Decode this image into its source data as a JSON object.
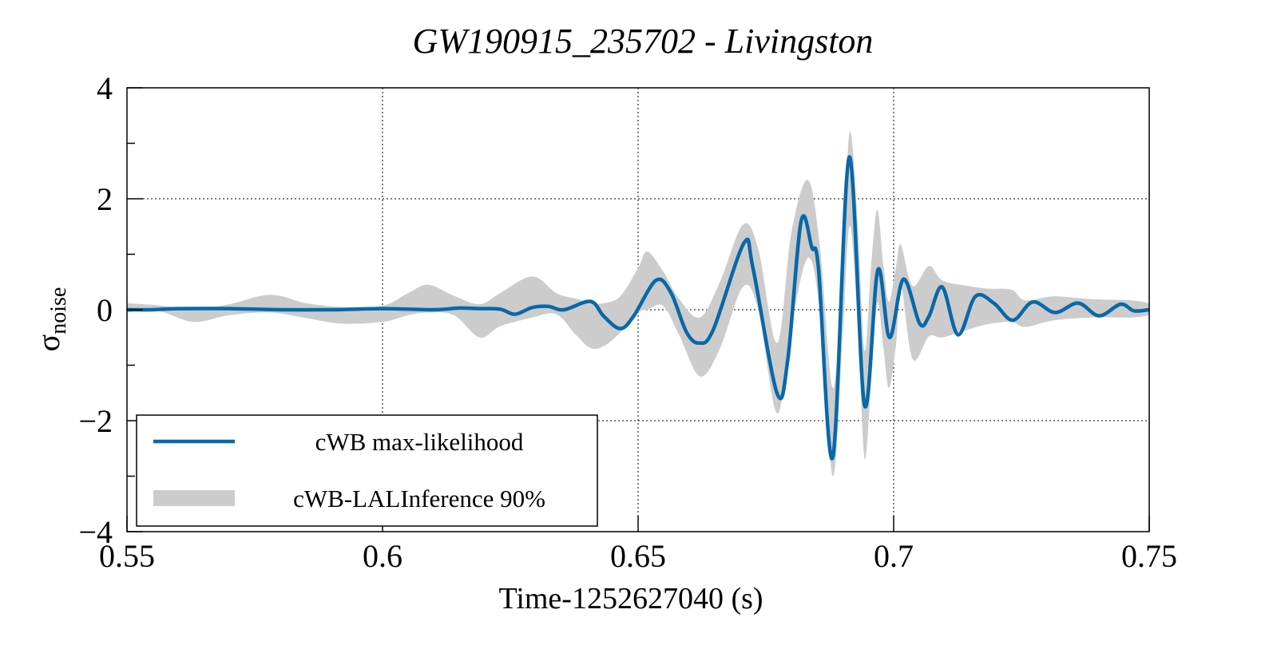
{
  "chart_data": {
    "type": "line",
    "title": "GW190915_235702 - Livingston",
    "xlabel": "Time-1252627040 (s)",
    "ylabel": "σ",
    "ylabel_sub": "noise",
    "xlim": [
      0.55,
      0.75
    ],
    "ylim": [
      -4,
      4
    ],
    "xticks": [
      0.55,
      0.6,
      0.65,
      0.7,
      0.75
    ],
    "xtick_labels": [
      "0.55",
      "0.6",
      "0.65",
      "0.7",
      "0.75"
    ],
    "yticks": [
      -4,
      -2,
      0,
      2,
      4
    ],
    "ytick_labels": [
      "−4",
      "−2",
      "0",
      "2",
      "4"
    ],
    "grid": true,
    "legend_position": "bottom-left",
    "series": [
      {
        "name": "cWB max-likelihood",
        "type": "line",
        "color": "#0868a8",
        "x": [
          0.55,
          0.555,
          0.56,
          0.57,
          0.58,
          0.59,
          0.6,
          0.61,
          0.615,
          0.6189,
          0.623,
          0.6259,
          0.6293,
          0.6324,
          0.6355,
          0.6407,
          0.6433,
          0.6465,
          0.6491,
          0.6535,
          0.6564,
          0.6595,
          0.662,
          0.6647,
          0.6707,
          0.6725,
          0.6772,
          0.6793,
          0.6819,
          0.684,
          0.6853,
          0.6881,
          0.6913,
          0.6943,
          0.6969,
          0.6992,
          0.7019,
          0.7051,
          0.7069,
          0.7095,
          0.7126,
          0.716,
          0.7196,
          0.7233,
          0.7272,
          0.7316,
          0.7361,
          0.7402,
          0.7444,
          0.747,
          0.75
        ],
        "y": [
          0.0,
          0.0,
          0.02,
          0.02,
          0.0,
          0.0,
          0.02,
          0.0,
          0.03,
          0.02,
          0.01,
          -0.08,
          0.04,
          0.06,
          0.0,
          0.15,
          -0.12,
          -0.34,
          -0.12,
          0.53,
          0.31,
          -0.41,
          -0.6,
          -0.36,
          1.2,
          0.74,
          -1.51,
          -0.89,
          1.6,
          1.12,
          0.74,
          -2.66,
          2.75,
          -1.72,
          0.72,
          -0.5,
          0.55,
          -0.25,
          -0.12,
          0.41,
          -0.45,
          0.24,
          0.12,
          -0.19,
          0.14,
          -0.05,
          0.12,
          -0.11,
          0.1,
          -0.02,
          0.0
        ]
      },
      {
        "name": "cWB-LALInference 90%",
        "type": "band",
        "color": "#cccccc",
        "x": [
          0.55,
          0.556,
          0.563,
          0.57,
          0.578,
          0.585,
          0.592,
          0.6,
          0.605,
          0.609,
          0.614,
          0.619,
          0.623,
          0.6293,
          0.634,
          0.6378,
          0.6407,
          0.6434,
          0.6465,
          0.65,
          0.6518,
          0.6549,
          0.658,
          0.6621,
          0.666,
          0.6705,
          0.6735,
          0.6772,
          0.68,
          0.6832,
          0.6855,
          0.6881,
          0.69,
          0.6914,
          0.693,
          0.6943,
          0.6956,
          0.6968,
          0.698,
          0.6991,
          0.7005,
          0.7014,
          0.7037,
          0.7069,
          0.7095,
          0.7145,
          0.7184,
          0.7231,
          0.7257,
          0.7314,
          0.7387,
          0.7465,
          0.75
        ],
        "lower": [
          -0.05,
          -0.02,
          -0.22,
          -0.1,
          -0.05,
          -0.15,
          -0.25,
          -0.22,
          -0.1,
          -0.05,
          -0.1,
          -0.5,
          -0.3,
          -0.14,
          -0.08,
          -0.45,
          -0.69,
          -0.65,
          -0.41,
          -0.05,
          0.0,
          0.07,
          -0.45,
          -1.2,
          -0.7,
          0.41,
          0.0,
          -1.87,
          -0.3,
          0.93,
          0.0,
          -3.0,
          -0.5,
          1.51,
          -0.3,
          -2.68,
          -1.3,
          0.12,
          -0.7,
          -1.41,
          -0.6,
          0.45,
          -0.89,
          -0.48,
          -0.5,
          -0.36,
          -0.26,
          -0.22,
          -0.31,
          -0.19,
          -0.14,
          -0.14,
          -0.1
        ],
        "upper": [
          0.12,
          0.08,
          0.02,
          0.1,
          0.27,
          0.12,
          0.05,
          0.07,
          0.3,
          0.45,
          0.25,
          0.1,
          0.3,
          0.6,
          0.3,
          0.2,
          0.12,
          0.12,
          0.24,
          0.75,
          1.05,
          0.69,
          0.2,
          -0.14,
          0.5,
          1.53,
          1.1,
          -0.6,
          1.4,
          2.34,
          1.2,
          -1.41,
          0.8,
          3.21,
          1.5,
          -0.74,
          0.8,
          1.8,
          0.8,
          0.14,
          0.8,
          1.17,
          0.43,
          0.79,
          0.53,
          0.43,
          0.38,
          0.36,
          0.17,
          0.24,
          0.19,
          0.17,
          0.12
        ]
      }
    ]
  }
}
